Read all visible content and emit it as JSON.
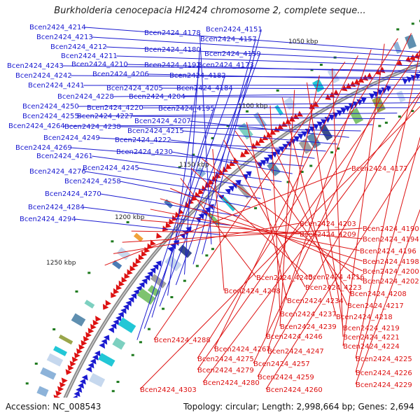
{
  "title": "Burkholderia cenocepacia HI2424 chromosome 2, complete seque...",
  "footer": {
    "accession": "Accession: NC_008543",
    "summary": "Topology: circular; Length: 2,998,664 bp; Genes: 2,694"
  },
  "scale_labels": [
    "1050 kbp",
    "1100 kbp",
    "1150 kbp",
    "1200 kbp",
    "1250 kbp"
  ],
  "forward_genes": [
    "Bcen2424_4214",
    "Bcen2424_4213",
    "Bcen2424_4212",
    "Bcen2424_4211",
    "Bcen2424_4243",
    "Bcen2424_4210",
    "Bcen2424_4242",
    "Bcen2424_4206",
    "Bcen2424_4241",
    "Bcen2424_4205",
    "Bcen2424_4228",
    "Bcen2424_4204",
    "Bcen2424_4250",
    "Bcen2424_4220",
    "Bcen2424_4255",
    "Bcen2424_4227",
    "Bcen2424_4264",
    "Bcen2424_4238",
    "Bcen2424_4207",
    "Bcen2424_4215",
    "Bcen2424_4249",
    "Bcen2424_4222",
    "Bcen2424_4269",
    "Bcen2424_4230",
    "Bcen2424_4261",
    "Bcen2424_4245",
    "Bcen2424_4276",
    "Bcen2424_4258",
    "Bcen2424_4270",
    "Bcen2424_4284",
    "Bcen2424_4294",
    "Bcen2424_4178",
    "Bcen2424_4151",
    "Bcen2424_4157",
    "Bcen2424_4180",
    "Bcen2424_4159",
    "Bcen2424_4192",
    "Bcen2424_4173",
    "Bcen2424_4182",
    "Bcen2424_4184",
    "Bcen2424_4195"
  ],
  "reverse_genes": [
    "Bcen2424_4177",
    "Bcen2424_4203",
    "Bcen2424_4190",
    "Bcen2424_4209",
    "Bcen2424_4194",
    "Bcen2424_4196",
    "Bcen2424_4198",
    "Bcen2424_4200",
    "Bcen2424_4240",
    "Bcen2424_4216",
    "Bcen2424_4202",
    "Bcen2424_4248",
    "Bcen2424_4223",
    "Bcen2424_4208",
    "Bcen2424_4234",
    "Bcen2424_4217",
    "Bcen2424_4237",
    "Bcen2424_4218",
    "Bcen2424_4239",
    "Bcen2424_4219",
    "Bcen2424_4246",
    "Bcen2424_4221",
    "Bcen2424_4288",
    "Bcen2424_4267",
    "Bcen2424_4247",
    "Bcen2424_4224",
    "Bcen2424_4275",
    "Bcen2424_4257",
    "Bcen2424_4225",
    "Bcen2424_4279",
    "Bcen2424_4226",
    "Bcen2424_4259",
    "Bcen2424_4280",
    "Bcen2424_4229",
    "Bcen2424_4260",
    "Bcen2424_4303"
  ],
  "colors": {
    "forward": "#1a1ad0",
    "reverse": "#dd1111",
    "backbone": "#888888",
    "marker": "#1e7a1e"
  }
}
